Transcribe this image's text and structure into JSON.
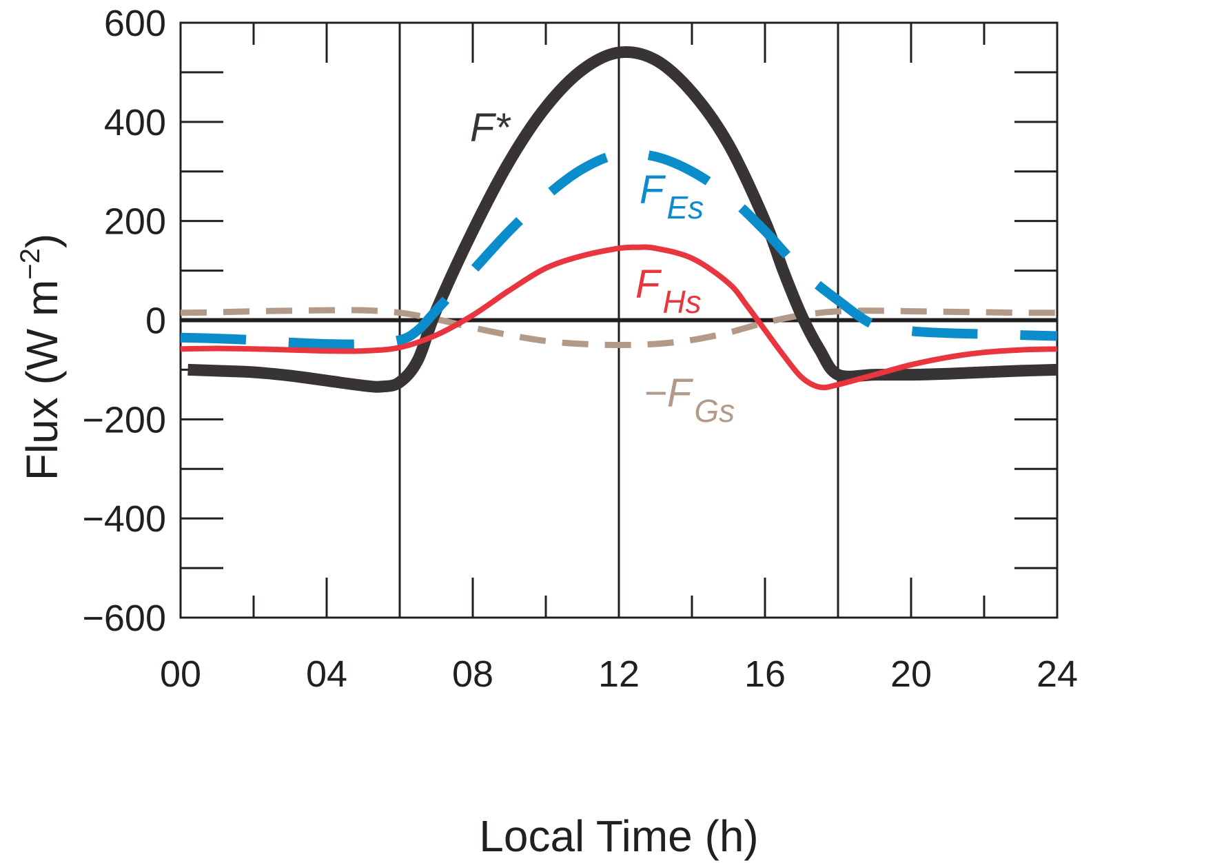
{
  "chart_data": {
    "type": "line",
    "title": "",
    "xlabel": "Local Time  (h)",
    "ylabel": "Flux (W m",
    "ylabel_sup": "−2",
    "ylabel_close": ")",
    "xlim": [
      0,
      24
    ],
    "ylim": [
      -600,
      600
    ],
    "x_ticks": [
      0,
      4,
      8,
      12,
      16,
      20,
      24
    ],
    "x_tick_labels": [
      "00",
      "04",
      "08",
      "12",
      "16",
      "20",
      "24"
    ],
    "x_minor_ticks": [
      2,
      6,
      10,
      14,
      18,
      22
    ],
    "y_ticks": [
      -600,
      -400,
      -200,
      0,
      200,
      400,
      600
    ],
    "y_tick_labels": [
      "−600",
      "−400",
      "−200",
      "0",
      "200",
      "400",
      "600"
    ],
    "y_minor_ticks": [
      -500,
      -300,
      -100,
      100,
      300,
      500
    ],
    "vertical_lines": [
      6,
      12,
      18
    ],
    "zero_line": true,
    "grid": false,
    "series": [
      {
        "name": "F*",
        "label_main": "F*",
        "label_sub": "",
        "label_prefix": "",
        "color": "#383334",
        "style": "solid",
        "x": [
          0.2,
          1,
          2,
          3,
          4,
          5,
          5.5,
          6,
          6.5,
          7,
          8,
          9,
          10,
          11,
          12,
          13,
          14,
          15,
          16,
          16.5,
          17,
          17.5,
          18,
          19,
          20,
          21,
          22,
          23,
          24
        ],
        "y": [
          -100,
          -102,
          -105,
          -112,
          -122,
          -132,
          -134,
          -125,
          -80,
          20,
          180,
          320,
          430,
          505,
          540,
          525,
          460,
          355,
          200,
          100,
          10,
          -60,
          -110,
          -110,
          -110,
          -108,
          -105,
          -102,
          -100
        ]
      },
      {
        "name": "F Es",
        "label_main": "F",
        "label_sub": "Es",
        "label_prefix": "",
        "color": "#0b8ccb",
        "style": "long-dash",
        "x": [
          0,
          1,
          2,
          3,
          4,
          5,
          6,
          6.5,
          7,
          8,
          9,
          10,
          11,
          12,
          13,
          14,
          15,
          16,
          17,
          18,
          19,
          20,
          21,
          22,
          23,
          24
        ],
        "y": [
          -35,
          -37,
          -40,
          -45,
          -48,
          -48,
          -40,
          -20,
          20,
          100,
          180,
          250,
          305,
          335,
          330,
          300,
          250,
          180,
          100,
          40,
          -10,
          -22,
          -26,
          -28,
          -30,
          -32
        ]
      },
      {
        "name": "F Hs",
        "label_main": "F",
        "label_sub": "Hs",
        "label_prefix": "",
        "color": "#e8353e",
        "style": "solid",
        "x": [
          0,
          1,
          2,
          3,
          4,
          5,
          6,
          7,
          8,
          9,
          10,
          11,
          12,
          12.5,
          13,
          14,
          15,
          15.5,
          16,
          16.5,
          17,
          17.5,
          18,
          19,
          20,
          21,
          22,
          23,
          24
        ],
        "y": [
          -58,
          -57,
          -58,
          -60,
          -62,
          -62,
          -55,
          -30,
          10,
          60,
          105,
          130,
          145,
          147,
          145,
          125,
          75,
          30,
          -20,
          -70,
          -115,
          -135,
          -130,
          -110,
          -90,
          -75,
          -65,
          -60,
          -58
        ]
      },
      {
        "name": "−F Gs",
        "label_main": "F",
        "label_sub": "Gs",
        "label_prefix": "−",
        "color": "#b39a88",
        "style": "dash",
        "x": [
          0,
          1,
          2,
          3,
          4,
          5,
          6,
          7,
          8,
          9,
          10,
          11,
          12,
          13,
          14,
          15,
          16,
          17,
          18,
          19,
          20,
          21,
          22,
          23,
          24
        ],
        "y": [
          15,
          16,
          18,
          19,
          20,
          20,
          15,
          2,
          -15,
          -30,
          -42,
          -48,
          -50,
          -48,
          -40,
          -25,
          -5,
          10,
          18,
          19,
          18,
          17,
          16,
          15,
          15
        ]
      }
    ]
  }
}
